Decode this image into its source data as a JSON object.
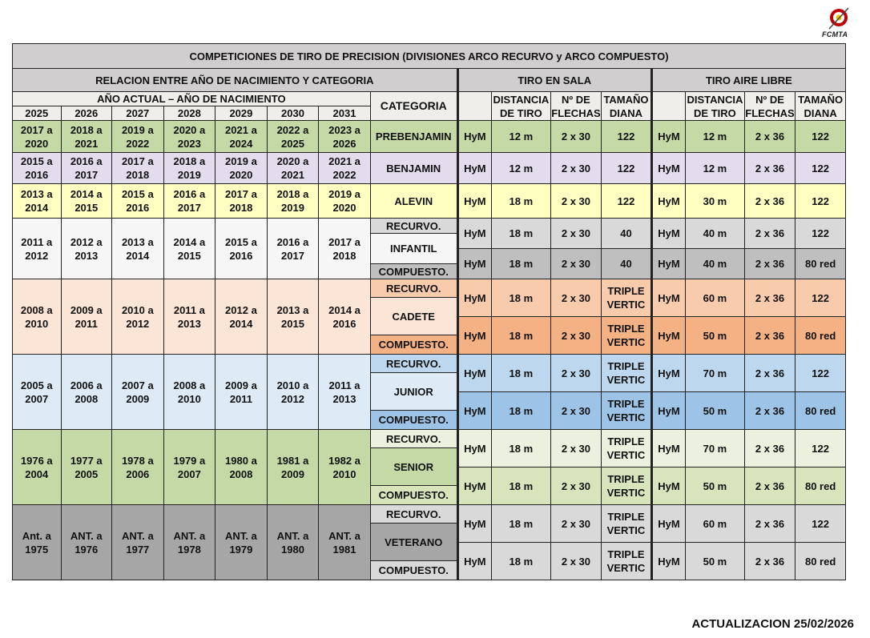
{
  "logo": {
    "text": "FCMTA",
    "icon": "archery-federation-logo"
  },
  "title": "COMPETICIONES DE TIRO DE PRECISION (DIVISIONES ARCO RECURVO y ARCO COMPUESTO)",
  "headers": {
    "relation": "RELACION ENTRE AÑO DE NACIMIENTO Y CATEGORIA",
    "indoor": "TIRO EN SALA",
    "outdoor": "TIRO AIRE LIBRE",
    "birth_year_header": "AÑO ACTUAL – AÑO DE NACIMIENTO",
    "category": "CATEGORIA",
    "years": [
      "2025",
      "2026",
      "2027",
      "2028",
      "2029",
      "2030",
      "2031"
    ],
    "distance": [
      "DISTANCIA",
      "DE TIRO"
    ],
    "arrows": [
      "Nº DE",
      "FLECHAS"
    ],
    "target": [
      "TAMAÑO",
      "DIANA"
    ]
  },
  "labels": {
    "recurvo": "RECURVO.",
    "compuesto": "COMPUESTO."
  },
  "rows": [
    {
      "category": "PREBENJAMIN",
      "bg": "#c5d9a6",
      "years": [
        [
          "2017 a",
          "2020"
        ],
        [
          "2018 a",
          "2021"
        ],
        [
          "2019 a",
          "2022"
        ],
        [
          "2020 a",
          "2023"
        ],
        [
          "2021 a",
          "2024"
        ],
        [
          "2022 a",
          "2025"
        ],
        [
          "2023 a",
          "2026"
        ]
      ],
      "lines": [
        {
          "indoor": [
            "HyM",
            "12 m",
            "2 x 30",
            "122"
          ],
          "outdoor": [
            "HyM",
            "12 m",
            "2 x 36",
            "122"
          ],
          "bg": "#c5d9a6"
        }
      ]
    },
    {
      "category": "BENJAMIN",
      "bg": "#e2dced",
      "years": [
        [
          "2015 a",
          "2016"
        ],
        [
          "2016 a",
          "2017"
        ],
        [
          "2017 a",
          "2018"
        ],
        [
          "2018 a",
          "2019"
        ],
        [
          "2019 a",
          "2020"
        ],
        [
          "2020 a",
          "2021"
        ],
        [
          "2021 a",
          "2022"
        ]
      ],
      "lines": [
        {
          "indoor": [
            "HyM",
            "12 m",
            "2 x 30",
            "122"
          ],
          "outdoor": [
            "HyM",
            "12 m",
            "2 x 36",
            "122"
          ],
          "bg": "#e2dced"
        }
      ]
    },
    {
      "category": "ALEVIN",
      "bg": "#ffffc2",
      "years": [
        [
          "2013 a",
          "2014"
        ],
        [
          "2014 a",
          "2015"
        ],
        [
          "2015 a",
          "2016"
        ],
        [
          "2016 a",
          "2017"
        ],
        [
          "2017 a",
          "2018"
        ],
        [
          "2018 a",
          "2019"
        ],
        [
          "2019 a",
          "2020"
        ]
      ],
      "lines": [
        {
          "indoor": [
            "HyM",
            "18 m",
            "2 x 30",
            "122"
          ],
          "outdoor": [
            "HyM",
            "30 m",
            "2 x 36",
            "122"
          ],
          "bg": "#ffffc2"
        }
      ]
    },
    {
      "category": "INFANTIL",
      "bg": "#f6f6f6",
      "years": [
        [
          "2011 a",
          "2012"
        ],
        [
          "2012 a",
          "2013"
        ],
        [
          "2013 a",
          "2014"
        ],
        [
          "2014 a",
          "2015"
        ],
        [
          "2015 a",
          "2016"
        ],
        [
          "2016 a",
          "2017"
        ],
        [
          "2017 a",
          "2018"
        ]
      ],
      "lines": [
        {
          "indoor": [
            "HyM",
            "18 m",
            "2 x 30",
            "40"
          ],
          "outdoor": [
            "HyM",
            "40 m",
            "2 x 36",
            "122"
          ],
          "bg": "#d9d9d9"
        },
        {
          "indoor": [
            "HyM",
            "18 m",
            "2 x 30",
            "40"
          ],
          "outdoor": [
            "HyM",
            "40 m",
            "2 x 36",
            "80 red"
          ],
          "bg": "#bfbfbf"
        }
      ]
    },
    {
      "category": "CADETE",
      "bg": "#fbe5d6",
      "years": [
        [
          "2008 a",
          "2010"
        ],
        [
          "2009 a",
          "2011"
        ],
        [
          "2010 a",
          "2012"
        ],
        [
          "2011 a",
          "2013"
        ],
        [
          "2012 a",
          "2014"
        ],
        [
          "2013 a",
          "2015"
        ],
        [
          "2014 a",
          "2016"
        ]
      ],
      "lines": [
        {
          "indoor": [
            "HyM",
            "18 m",
            "2 x 30",
            [
              "TRIPLE",
              "VERTIC"
            ]
          ],
          "outdoor": [
            "HyM",
            "60 m",
            "2 x 36",
            "122"
          ],
          "bg": "#f8cbad"
        },
        {
          "indoor": [
            "HyM",
            "18 m",
            "2 x 30",
            [
              "TRIPLE",
              "VERTIC"
            ]
          ],
          "outdoor": [
            "HyM",
            "50 m",
            "2 x 36",
            "80 red"
          ],
          "bg": "#f4b183"
        }
      ]
    },
    {
      "category": "JUNIOR",
      "bg": "#deebf7",
      "years": [
        [
          "2005 a",
          "2007"
        ],
        [
          "2006 a",
          "2008"
        ],
        [
          "2007 a",
          "2009"
        ],
        [
          "2008 a",
          "2010"
        ],
        [
          "2009 a",
          "2011"
        ],
        [
          "2010 a",
          "2012"
        ],
        [
          "2011 a",
          "2013"
        ]
      ],
      "lines": [
        {
          "indoor": [
            "HyM",
            "18 m",
            "2 x 30",
            [
              "TRIPLE",
              "VERTIC"
            ]
          ],
          "outdoor": [
            "HyM",
            "70 m",
            "2 x 36",
            "122"
          ],
          "bg": "#bdd7ee"
        },
        {
          "indoor": [
            "HyM",
            "18 m",
            "2 x 30",
            [
              "TRIPLE",
              "VERTIC"
            ]
          ],
          "outdoor": [
            "HyM",
            "50 m",
            "2 x 36",
            "80 red"
          ],
          "bg": "#9dc3e6"
        }
      ]
    },
    {
      "category": "SENIOR",
      "bg": "#c5d9a6",
      "years": [
        [
          "1976 a",
          "2004"
        ],
        [
          "1977 a",
          "2005"
        ],
        [
          "1978 a",
          "2006"
        ],
        [
          "1979 a",
          "2007"
        ],
        [
          "1980 a",
          "2008"
        ],
        [
          "1981 a",
          "2009"
        ],
        [
          "1982 a",
          "2010"
        ]
      ],
      "lines": [
        {
          "indoor": [
            "HyM",
            "18 m",
            "2 x 30",
            [
              "TRIPLE",
              "VERTIC"
            ]
          ],
          "outdoor": [
            "HyM",
            "70 m",
            "2 x 36",
            "122"
          ],
          "bg": "#ebf1de"
        },
        {
          "indoor": [
            "HyM",
            "18 m",
            "2 x 30",
            [
              "TRIPLE",
              "VERTIC"
            ]
          ],
          "outdoor": [
            "HyM",
            "50 m",
            "2 x 36",
            "80 red"
          ],
          "bg": "#d8e4bc"
        }
      ]
    },
    {
      "category": "VETERANO",
      "bg": "#a6a6a6",
      "years": [
        [
          "Ant. a",
          "1975"
        ],
        [
          "ANT. a",
          "1976"
        ],
        [
          "ANT. a",
          "1977"
        ],
        [
          "ANT. a",
          "1978"
        ],
        [
          "ANT. a",
          "1979"
        ],
        [
          "ANT. a",
          "1980"
        ],
        [
          "ANT. a",
          "1981"
        ]
      ],
      "lines": [
        {
          "indoor": [
            "HyM",
            "18 m",
            "2 x 30",
            [
              "TRIPLE",
              "VERTIC"
            ]
          ],
          "outdoor": [
            "HyM",
            "60 m",
            "2 x 36",
            "122"
          ],
          "bg": "#d9d9d9"
        },
        {
          "indoor": [
            "HyM",
            "18 m",
            "2 x 30",
            [
              "TRIPLE",
              "VERTIC"
            ]
          ],
          "outdoor": [
            "HyM",
            "50 m",
            "2 x 36",
            "80 red"
          ],
          "bg": "#d9d9d9"
        }
      ]
    }
  ],
  "footer": {
    "update": "ACTUALIZACION 25/02/2026"
  }
}
